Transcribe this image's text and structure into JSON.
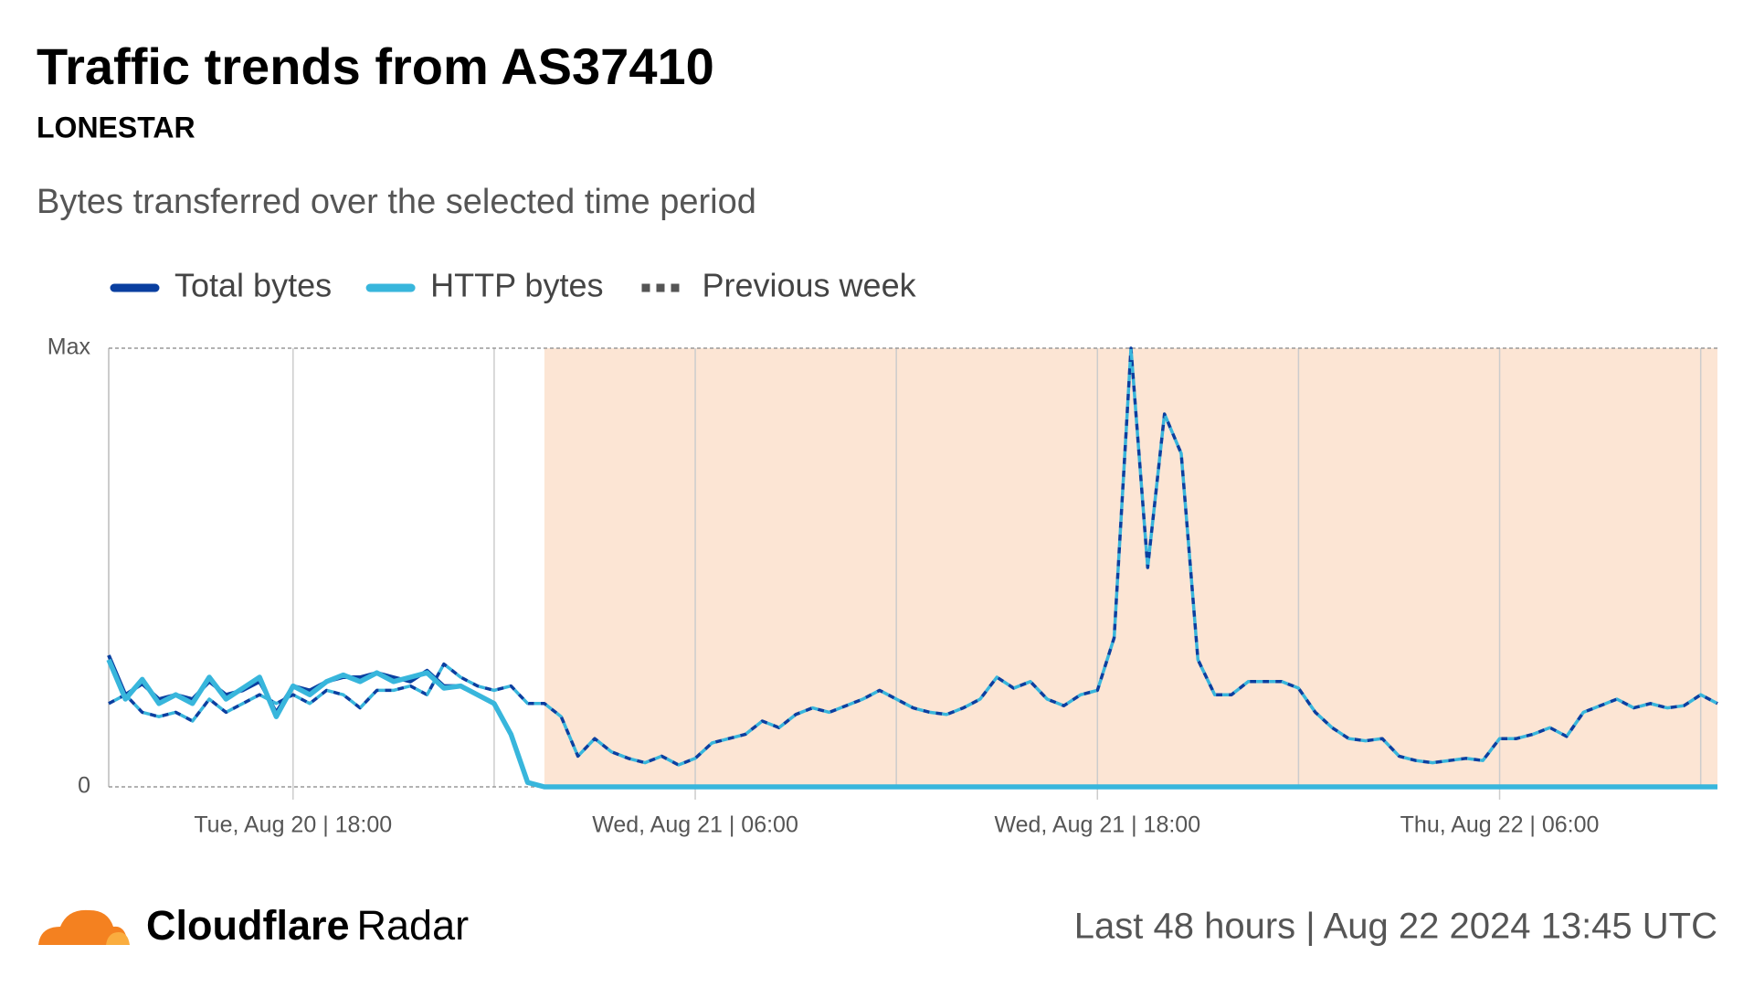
{
  "chart_data": {
    "type": "line",
    "title": "Traffic trends from AS37410",
    "subtitle": "LONESTAR",
    "description": "Bytes transferred over the selected time period",
    "categories": [
      null,
      null,
      null,
      null,
      null,
      null,
      null,
      null,
      null,
      null,
      null,
      "Tue, Aug 20 | 18:00",
      null,
      null,
      null,
      null,
      null,
      null,
      null,
      null,
      null,
      null,
      null,
      null,
      null,
      null,
      null,
      null,
      null,
      null,
      null,
      null,
      null,
      null,
      null,
      "Wed, Aug 21 | 06:00",
      null,
      null,
      null,
      null,
      null,
      null,
      null,
      null,
      null,
      null,
      null,
      null,
      null,
      null,
      null,
      null,
      null,
      null,
      null,
      null,
      null,
      null,
      null,
      "Wed, Aug 21 | 18:00",
      null,
      null,
      null,
      null,
      null,
      null,
      null,
      null,
      null,
      null,
      null,
      null,
      null,
      null,
      null,
      null,
      null,
      null,
      null,
      null,
      null,
      null,
      null,
      "Thu, Aug 22 | 06:00",
      null,
      null,
      null,
      null,
      null,
      null,
      null,
      null,
      null,
      null,
      null,
      null,
      null
    ],
    "series": [
      {
        "name": "Total bytes",
        "color": "#0a3fa0",
        "values": [
          0.3,
          0.21,
          0.235,
          0.2,
          0.21,
          0.2,
          0.24,
          0.21,
          0.22,
          0.24,
          0.17,
          0.23,
          0.22,
          0.24,
          0.25,
          0.25,
          0.26,
          0.25,
          0.24,
          0.265,
          0.23,
          0.23,
          0.21,
          0.19,
          0.12,
          0.01,
          0,
          0,
          0,
          0,
          0,
          0,
          0,
          0,
          0,
          0,
          0,
          0,
          0,
          0,
          0,
          0,
          0,
          0,
          0,
          0,
          0,
          0,
          0,
          0,
          0,
          0,
          0,
          0,
          0,
          0,
          0,
          0,
          0,
          0,
          0,
          0,
          0,
          0,
          0,
          0,
          0,
          0,
          0,
          0,
          0,
          0,
          0,
          0,
          0,
          0,
          0,
          0,
          0,
          0,
          0,
          0,
          0,
          0,
          0,
          0,
          0,
          0,
          0,
          0,
          0,
          0,
          0,
          0,
          0,
          0,
          0
        ]
      },
      {
        "name": "HTTP bytes",
        "color": "#38b6dc",
        "values": [
          0.29,
          0.2,
          0.245,
          0.19,
          0.21,
          0.19,
          0.25,
          0.2,
          0.225,
          0.25,
          0.16,
          0.23,
          0.21,
          0.24,
          0.255,
          0.24,
          0.26,
          0.24,
          0.25,
          0.26,
          0.225,
          0.23,
          0.21,
          0.19,
          0.12,
          0.01,
          0,
          0,
          0,
          0,
          0,
          0,
          0,
          0,
          0,
          0,
          0,
          0,
          0,
          0,
          0,
          0,
          0,
          0,
          0,
          0,
          0,
          0,
          0,
          0,
          0,
          0,
          0,
          0,
          0,
          0,
          0,
          0,
          0,
          0,
          0,
          0,
          0,
          0,
          0,
          0,
          0,
          0,
          0,
          0,
          0,
          0,
          0,
          0,
          0,
          0,
          0,
          0,
          0,
          0,
          0,
          0,
          0,
          0,
          0,
          0,
          0,
          0,
          0,
          0,
          0,
          0,
          0,
          0,
          0,
          0,
          0
        ]
      },
      {
        "name": "Previous week",
        "color": "#555555",
        "line_colors": [
          "#0a3fa0",
          "#38b6dc"
        ],
        "dashed": true,
        "values": [
          0.19,
          0.21,
          0.17,
          0.16,
          0.17,
          0.15,
          0.2,
          0.17,
          0.19,
          0.21,
          0.19,
          0.21,
          0.19,
          0.22,
          0.21,
          0.18,
          0.22,
          0.22,
          0.23,
          0.21,
          0.28,
          0.25,
          0.23,
          0.22,
          0.23,
          0.19,
          0.19,
          0.16,
          0.07,
          0.11,
          0.08,
          0.065,
          0.055,
          0.07,
          0.05,
          0.065,
          0.1,
          0.11,
          0.12,
          0.15,
          0.135,
          0.165,
          0.18,
          0.17,
          0.185,
          0.2,
          0.22,
          0.2,
          0.18,
          0.17,
          0.165,
          0.18,
          0.2,
          0.25,
          0.225,
          0.24,
          0.2,
          0.185,
          0.21,
          0.22,
          0.34,
          1,
          0.5,
          0.85,
          0.76,
          0.29,
          0.21,
          0.21,
          0.24,
          0.24,
          0.24,
          0.225,
          0.17,
          0.135,
          0.11,
          0.105,
          0.11,
          0.07,
          0.06,
          0.055,
          0.06,
          0.065,
          0.06,
          0.11,
          0.11,
          0.12,
          0.135,
          0.115,
          0.17,
          0.185,
          0.2,
          0.18,
          0.19,
          0.18,
          0.185,
          0.21,
          0.19
        ]
      }
    ],
    "ylim": [
      0,
      1
    ],
    "yticks": [
      0,
      {
        "value": 1,
        "label": "Max"
      }
    ],
    "shaded_region": {
      "from_index": 26,
      "color": "#fce5d4"
    },
    "footer": {
      "brand": "Cloudflare",
      "product": "Radar",
      "note": "Last 48 hours | Aug 22 2024 13:45 UTC"
    }
  }
}
